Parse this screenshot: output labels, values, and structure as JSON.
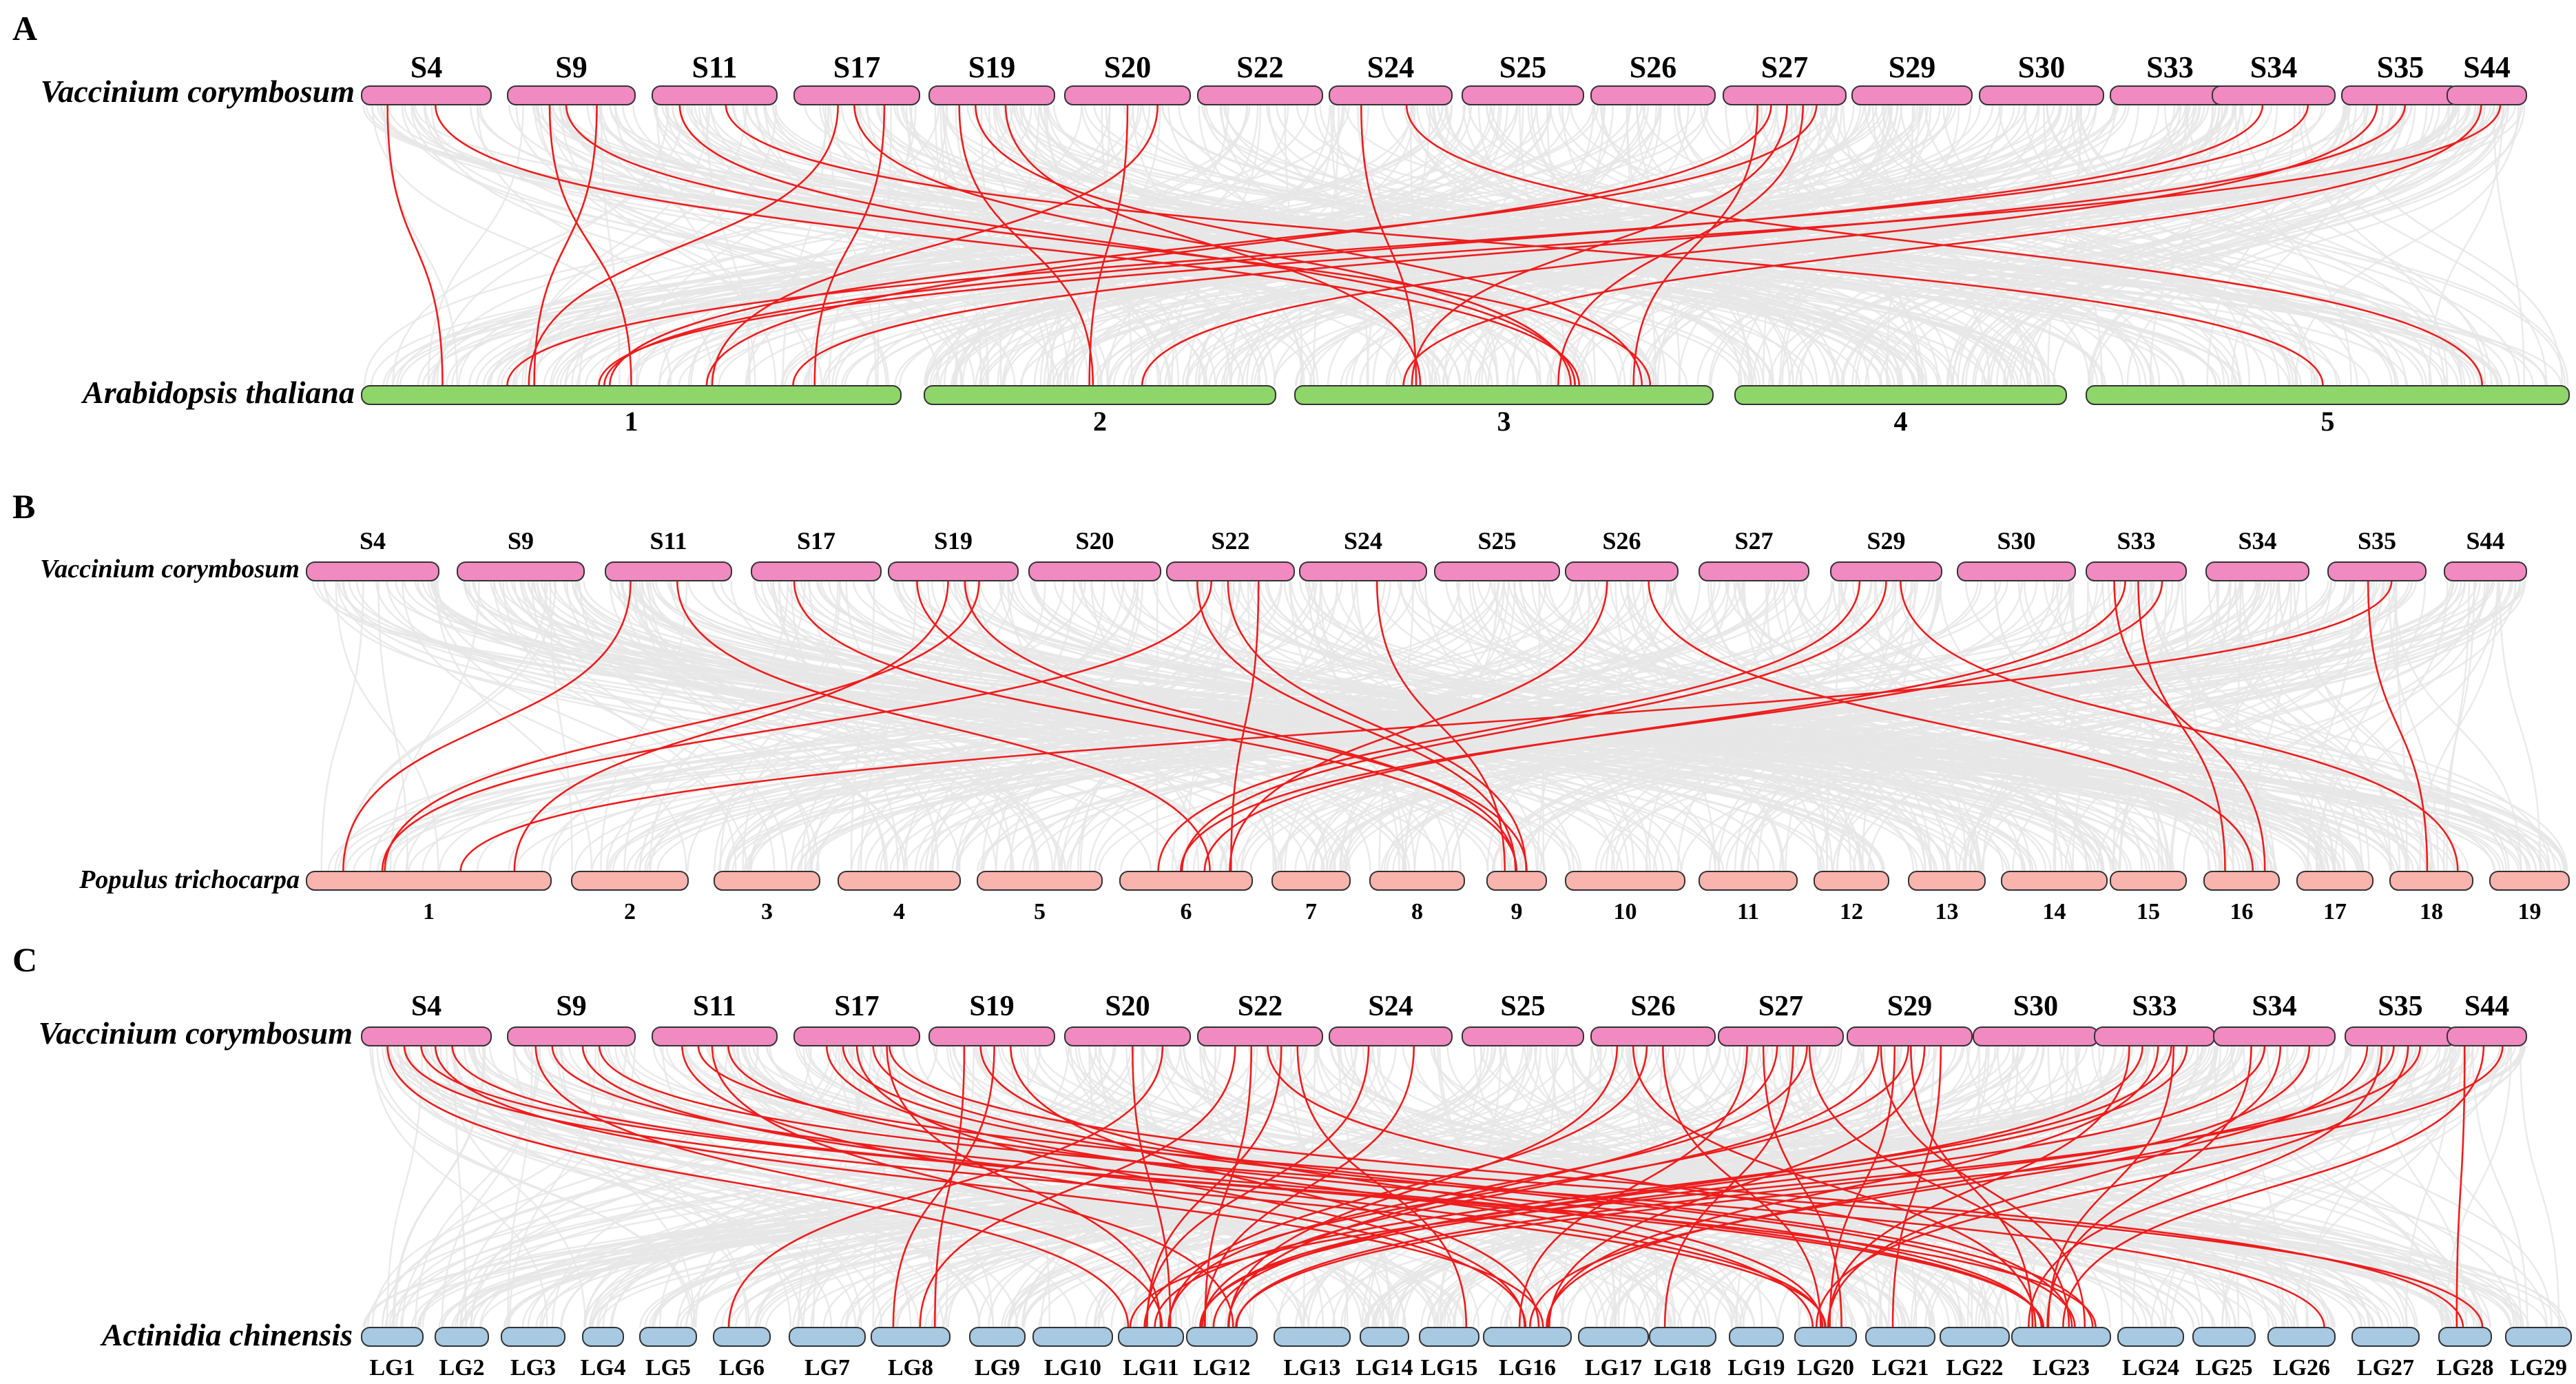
{
  "colors": {
    "vaccinium": "#f08ac0",
    "arabidopsis": "#8fd66a",
    "populus": "#f8b4ad",
    "actinidia": "#a7c9e2",
    "synteny_highlight": "#ee1c1c",
    "synteny_background": "#e6e6e6"
  },
  "panels": [
    {
      "letter": "A",
      "top_species": "Vaccinium corymbosum",
      "bottom_species": "Arabidopsis thaliana",
      "top_chromosomes": [
        "S4",
        "S9",
        "S11",
        "S17",
        "S19",
        "S20",
        "S22",
        "S24",
        "S25",
        "S26",
        "S27",
        "S29",
        "S30",
        "S33",
        "S34",
        "S35",
        "S44"
      ],
      "bottom_chromosomes": [
        "1",
        "2",
        "3",
        "4",
        "5"
      ],
      "highlight_links": [
        [
          "S4",
          "1"
        ],
        [
          "S4",
          "3"
        ],
        [
          "S9",
          "1"
        ],
        [
          "S9",
          "1"
        ],
        [
          "S9",
          "3"
        ],
        [
          "S11",
          "3"
        ],
        [
          "S11",
          "5"
        ],
        [
          "S17",
          "1"
        ],
        [
          "S17",
          "1"
        ],
        [
          "S17",
          "3"
        ],
        [
          "S19",
          "2"
        ],
        [
          "S19",
          "3"
        ],
        [
          "S19",
          "3"
        ],
        [
          "S20",
          "1"
        ],
        [
          "S20",
          "2"
        ],
        [
          "S24",
          "3"
        ],
        [
          "S24",
          "5"
        ],
        [
          "S27",
          "1"
        ],
        [
          "S27",
          "1"
        ],
        [
          "S27",
          "3"
        ],
        [
          "S27",
          "3"
        ],
        [
          "S27",
          "3"
        ],
        [
          "S34",
          "1"
        ],
        [
          "S34",
          "1"
        ],
        [
          "S35",
          "1"
        ],
        [
          "S35",
          "2"
        ],
        [
          "S44",
          "1"
        ],
        [
          "S44",
          "3"
        ]
      ]
    },
    {
      "letter": "B",
      "top_species": "Vaccinium corymbosum",
      "bottom_species": "Populus trichocarpa",
      "top_chromosomes": [
        "S4",
        "S9",
        "S11",
        "S17",
        "S19",
        "S20",
        "S22",
        "S24",
        "S25",
        "S26",
        "S27",
        "S29",
        "S30",
        "S33",
        "S34",
        "S35",
        "S44"
      ],
      "bottom_chromosomes": [
        "1",
        "2",
        "3",
        "4",
        "5",
        "6",
        "7",
        "8",
        "9",
        "10",
        "11",
        "12",
        "13",
        "14",
        "15",
        "16",
        "17",
        "18",
        "19"
      ],
      "highlight_links": [
        [
          "S11",
          "1"
        ],
        [
          "S11",
          "6"
        ],
        [
          "S17",
          "9"
        ],
        [
          "S19",
          "1"
        ],
        [
          "S19",
          "1"
        ],
        [
          "S19",
          "9"
        ],
        [
          "S19",
          "9"
        ],
        [
          "S22",
          "1"
        ],
        [
          "S22",
          "6"
        ],
        [
          "S22",
          "9"
        ],
        [
          "S22",
          "9"
        ],
        [
          "S24",
          "9"
        ],
        [
          "S26",
          "6"
        ],
        [
          "S26",
          "16"
        ],
        [
          "S29",
          "6"
        ],
        [
          "S29",
          "6"
        ],
        [
          "S29",
          "18"
        ],
        [
          "S33",
          "6"
        ],
        [
          "S33",
          "6"
        ],
        [
          "S33",
          "16"
        ],
        [
          "S33",
          "16"
        ],
        [
          "S35",
          "1"
        ],
        [
          "S35",
          "18"
        ]
      ]
    },
    {
      "letter": "C",
      "top_species": "Vaccinium corymbosum",
      "bottom_species": "Actinidia chinensis",
      "top_chromosomes": [
        "S4",
        "S9",
        "S11",
        "S17",
        "S19",
        "S20",
        "S22",
        "S24",
        "S25",
        "S26",
        "S27",
        "S29",
        "S30",
        "S33",
        "S34",
        "S35",
        "S44"
      ],
      "bottom_chromosomes": [
        "LG1",
        "LG2",
        "LG3",
        "LG4",
        "LG5",
        "LG6",
        "LG7",
        "LG8",
        "LG9",
        "LG10",
        "LG11",
        "LG12",
        "LG13",
        "LG14",
        "LG15",
        "LG16",
        "LG17",
        "LG18",
        "LG19",
        "LG20",
        "LG21",
        "LG22",
        "LG23",
        "LG24",
        "LG25",
        "LG26",
        "LG27",
        "LG28",
        "LG29"
      ],
      "highlight_links": [
        [
          "S4",
          "LG11"
        ],
        [
          "S4",
          "LG16"
        ],
        [
          "S4",
          "LG20"
        ],
        [
          "S4",
          "LG23"
        ],
        [
          "S4",
          "LG23"
        ],
        [
          "S9",
          "LG11"
        ],
        [
          "S9",
          "LG20"
        ],
        [
          "S9",
          "LG23"
        ],
        [
          "S9",
          "LG26"
        ],
        [
          "S11",
          "LG12"
        ],
        [
          "S11",
          "LG16"
        ],
        [
          "S11",
          "LG23"
        ],
        [
          "S11",
          "LG28"
        ],
        [
          "S17",
          "LG11"
        ],
        [
          "S17",
          "LG16"
        ],
        [
          "S17",
          "LG20"
        ],
        [
          "S17",
          "LG23"
        ],
        [
          "S17",
          "LG23"
        ],
        [
          "S17",
          "LG28"
        ],
        [
          "S19",
          "LG8"
        ],
        [
          "S19",
          "LG8"
        ],
        [
          "S19",
          "LG16"
        ],
        [
          "S19",
          "LG20"
        ],
        [
          "S20",
          "LG6"
        ],
        [
          "S20",
          "LG11"
        ],
        [
          "S22",
          "LG8"
        ],
        [
          "S22",
          "LG11"
        ],
        [
          "S22",
          "LG12"
        ],
        [
          "S22",
          "LG15"
        ],
        [
          "S22",
          "LG23"
        ],
        [
          "S24",
          "LG11"
        ],
        [
          "S24",
          "LG12"
        ],
        [
          "S26",
          "LG11"
        ],
        [
          "S26",
          "LG12"
        ],
        [
          "S26",
          "LG20"
        ],
        [
          "S26",
          "LG23"
        ],
        [
          "S27",
          "LG11"
        ],
        [
          "S27",
          "LG12"
        ],
        [
          "S27",
          "LG16"
        ],
        [
          "S27",
          "LG18"
        ],
        [
          "S27",
          "LG20"
        ],
        [
          "S27",
          "LG23"
        ],
        [
          "S29",
          "LG11"
        ],
        [
          "S29",
          "LG12"
        ],
        [
          "S29",
          "LG16"
        ],
        [
          "S29",
          "LG20"
        ],
        [
          "S29",
          "LG21"
        ],
        [
          "S29",
          "LG23"
        ],
        [
          "S29",
          "LG23"
        ],
        [
          "S33",
          "LG11"
        ],
        [
          "S33",
          "LG12"
        ],
        [
          "S33",
          "LG12"
        ],
        [
          "S33",
          "LG16"
        ],
        [
          "S33",
          "LG20"
        ],
        [
          "S33",
          "LG23"
        ],
        [
          "S34",
          "LG12"
        ],
        [
          "S34",
          "LG16"
        ],
        [
          "S34",
          "LG20"
        ],
        [
          "S34",
          "LG23"
        ],
        [
          "S35",
          "LG11"
        ],
        [
          "S35",
          "LG12"
        ],
        [
          "S35",
          "LG16"
        ],
        [
          "S35",
          "LG20"
        ],
        [
          "S35",
          "LG23"
        ],
        [
          "S44",
          "LG12"
        ],
        [
          "S44",
          "LG23"
        ],
        [
          "S44",
          "LG28"
        ]
      ]
    }
  ]
}
